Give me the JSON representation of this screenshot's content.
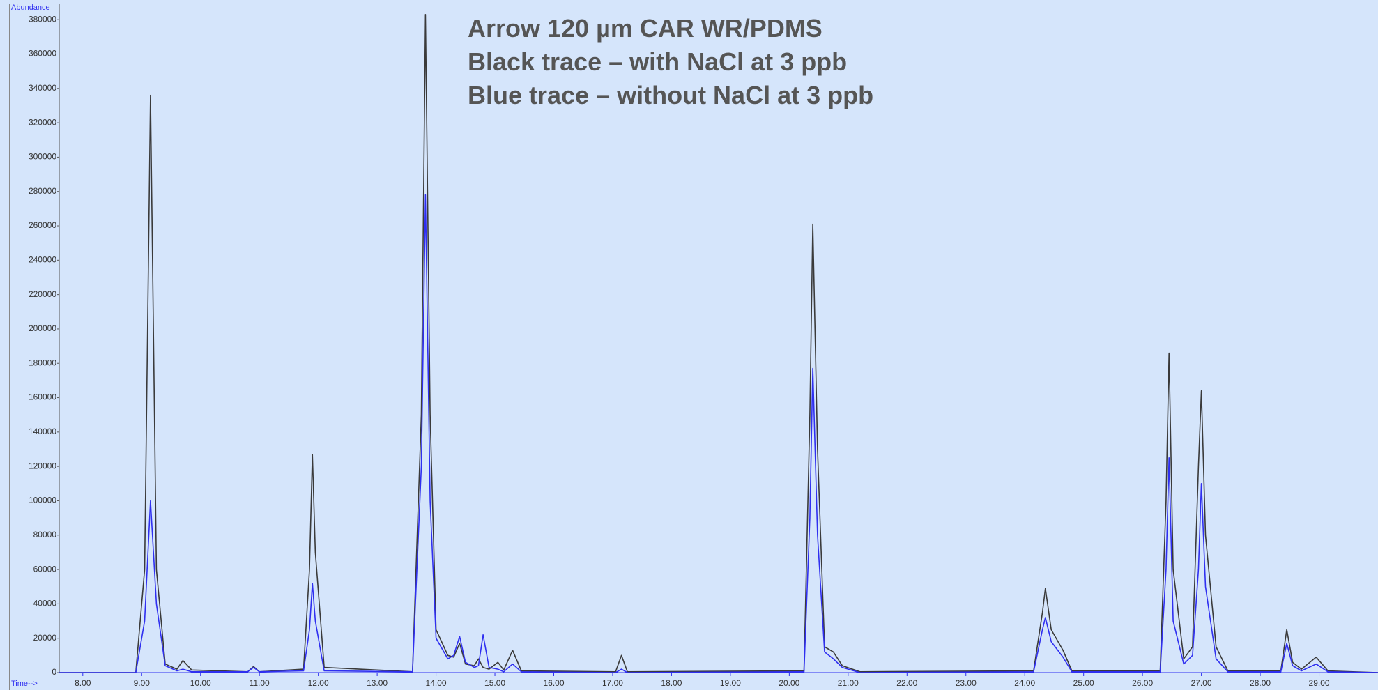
{
  "chart_data": {
    "type": "line",
    "title": "Arrow 120 µm CAR WR/PDMS",
    "ylabel": "Abundance",
    "xlabel": "Time-->",
    "x": [
      7.6,
      8.9,
      9.05,
      9.15,
      9.25,
      9.4,
      9.6,
      9.7,
      9.85,
      10.8,
      10.9,
      11.0,
      11.75,
      11.85,
      11.9,
      11.95,
      12.1,
      13.6,
      13.75,
      13.82,
      13.9,
      14.0,
      14.2,
      14.3,
      14.4,
      14.5,
      14.65,
      14.72,
      14.8,
      14.9,
      15.05,
      15.15,
      15.3,
      15.45,
      17.05,
      17.15,
      17.25,
      20.25,
      20.35,
      20.4,
      20.48,
      20.6,
      20.75,
      20.9,
      21.2,
      24.15,
      24.3,
      24.35,
      24.45,
      24.65,
      24.8,
      26.3,
      26.4,
      26.45,
      26.52,
      26.7,
      26.85,
      26.95,
      27.0,
      27.07,
      27.25,
      27.45,
      28.35,
      28.45,
      28.55,
      28.7,
      28.95,
      29.15,
      30.0
    ],
    "series": [
      {
        "name": "Black trace – with NaCl at 3 ppb",
        "color": "#3a3a3a",
        "values": [
          0,
          0,
          60000,
          336000,
          60000,
          5000,
          2000,
          7000,
          1500,
          500,
          3500,
          500,
          2000,
          60000,
          127000,
          70000,
          3000,
          500,
          150000,
          383000,
          150000,
          25000,
          10000,
          9000,
          17000,
          5000,
          4000,
          8000,
          3000,
          2000,
          6000,
          1500,
          13000,
          1000,
          500,
          10000,
          500,
          1000,
          150000,
          261000,
          130000,
          15000,
          12000,
          4000,
          500,
          1000,
          35000,
          49000,
          25000,
          13000,
          1000,
          1000,
          100000,
          186000,
          60000,
          8000,
          15000,
          120000,
          164000,
          80000,
          15000,
          1000,
          1000,
          25000,
          6000,
          2000,
          9000,
          1000,
          0
        ]
      },
      {
        "name": "Blue trace – without NaCl at 3 ppb",
        "color": "#2f2ff0",
        "values": [
          0,
          0,
          30000,
          100000,
          40000,
          4000,
          1000,
          2000,
          500,
          500,
          3000,
          500,
          1000,
          25000,
          52000,
          30000,
          1000,
          500,
          120000,
          278000,
          100000,
          20000,
          8000,
          10000,
          21000,
          6000,
          3000,
          4000,
          22000,
          3000,
          2000,
          500,
          5000,
          500,
          0,
          2000,
          0,
          500,
          90000,
          177000,
          80000,
          12000,
          8000,
          3000,
          0,
          500,
          25000,
          32000,
          18000,
          9000,
          500,
          500,
          60000,
          125000,
          30000,
          5000,
          10000,
          60000,
          110000,
          50000,
          8000,
          500,
          500,
          17000,
          4000,
          1000,
          5000,
          500,
          0
        ]
      }
    ],
    "xlim": [
      7.6,
      30.0
    ],
    "ylim": [
      0,
      389000
    ],
    "xticks": [
      {
        "value": 8,
        "label": "8.00"
      },
      {
        "value": 9,
        "label": "9.00"
      },
      {
        "value": 10,
        "label": "10.00"
      },
      {
        "value": 11,
        "label": "11.00"
      },
      {
        "value": 12,
        "label": "12.00"
      },
      {
        "value": 13,
        "label": "13.00"
      },
      {
        "value": 14,
        "label": "14.00"
      },
      {
        "value": 15,
        "label": "15.00"
      },
      {
        "value": 16,
        "label": "16.00"
      },
      {
        "value": 17,
        "label": "17.00"
      },
      {
        "value": 18,
        "label": "18.00"
      },
      {
        "value": 19,
        "label": "19.00"
      },
      {
        "value": 20,
        "label": "20.00"
      },
      {
        "value": 21,
        "label": "21.00"
      },
      {
        "value": 22,
        "label": "22.00"
      },
      {
        "value": 23,
        "label": "23.00"
      },
      {
        "value": 24,
        "label": "24.00"
      },
      {
        "value": 25,
        "label": "25.00"
      },
      {
        "value": 26,
        "label": "26.00"
      },
      {
        "value": 27,
        "label": "27.00"
      },
      {
        "value": 28,
        "label": "28.00"
      },
      {
        "value": 29,
        "label": "29.00"
      }
    ],
    "yticks": [
      0,
      20000,
      40000,
      60000,
      80000,
      100000,
      120000,
      140000,
      160000,
      180000,
      200000,
      220000,
      240000,
      260000,
      280000,
      300000,
      320000,
      340000,
      360000,
      380000
    ],
    "grid": false
  }
}
